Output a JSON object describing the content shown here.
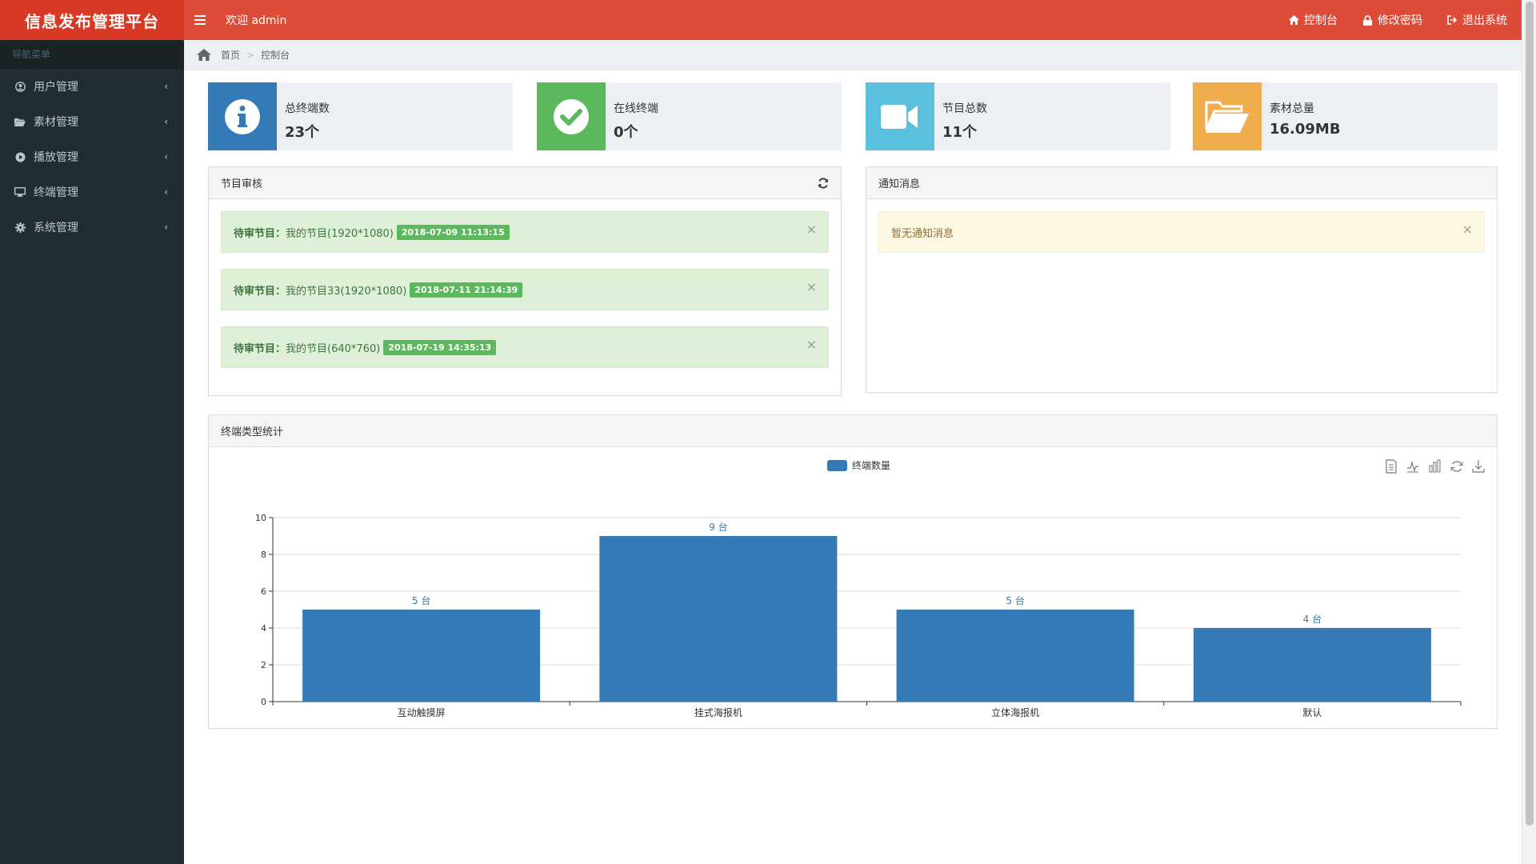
{
  "app": {
    "title": "信息发布管理平台",
    "welcome": "欢迎 admin"
  },
  "header": {
    "links": [
      {
        "label": "控制台",
        "icon": "home-icon"
      },
      {
        "label": "修改密码",
        "icon": "lock-icon"
      },
      {
        "label": "退出系统",
        "icon": "sign-out-icon"
      }
    ]
  },
  "sidebar": {
    "header": "导航菜单",
    "items": [
      {
        "label": "用户管理",
        "icon": "user-circle-icon"
      },
      {
        "label": "素材管理",
        "icon": "folder-open-icon"
      },
      {
        "label": "播放管理",
        "icon": "play-circle-icon"
      },
      {
        "label": "终端管理",
        "icon": "desktop-icon"
      },
      {
        "label": "系统管理",
        "icon": "gear-icon"
      }
    ]
  },
  "breadcrumb": {
    "home": "首页",
    "current": "控制台"
  },
  "stats": [
    {
      "label": "总终端数",
      "value": "23个",
      "color": "#337ab7",
      "icon": "info-icon"
    },
    {
      "label": "在线终端",
      "value": "0个",
      "color": "#5cb85c",
      "icon": "check-circle-icon"
    },
    {
      "label": "节目总数",
      "value": "11个",
      "color": "#5bc0de",
      "icon": "video-camera-icon"
    },
    {
      "label": "素材总量",
      "value": "16.09MB",
      "color": "#f0ad4e",
      "icon": "folder-open-icon"
    }
  ],
  "review": {
    "title": "节目审核",
    "prefix": "待审节目：",
    "items": [
      {
        "name": "我的节目(1920*1080)",
        "time": "2018-07-09 11:13:15"
      },
      {
        "name": "我的节目33(1920*1080)",
        "time": "2018-07-11 21:14:39"
      },
      {
        "name": "我的节目(640*760)",
        "time": "2018-07-19 14:35:13"
      }
    ]
  },
  "notice": {
    "title": "通知消息",
    "empty": "暂无通知消息"
  },
  "terminal_stats": {
    "title": "终端类型统计"
  },
  "chart_data": {
    "type": "bar",
    "categories": [
      "互动触摸屏",
      "挂式海报机",
      "立体海报机",
      "默认"
    ],
    "series": [
      {
        "name": "终端数量",
        "values": [
          5,
          9,
          5,
          4
        ]
      }
    ],
    "data_label_suffix": " 台",
    "ylim": [
      0,
      10
    ],
    "yticks": [
      0,
      2,
      4,
      6,
      8,
      10
    ],
    "grid": true,
    "legend": "top-center",
    "color": "#337ab7",
    "toolbox": [
      "data-view-icon",
      "line-chart-icon",
      "bar-chart-icon",
      "restore-icon",
      "save-image-icon"
    ]
  },
  "colors": {
    "header": "#dd4b39",
    "logo": "#d73925",
    "sidebar": "#222d32"
  }
}
